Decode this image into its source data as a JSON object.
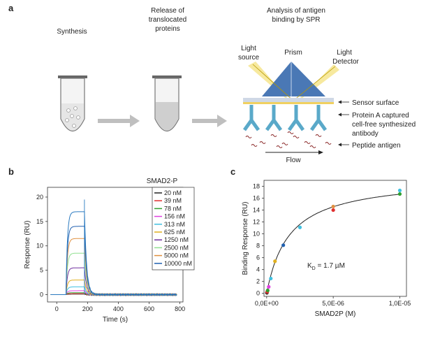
{
  "panel_a": {
    "letter": "a",
    "step1": "Synthesis",
    "step2_line1": "Release of",
    "step2_line2": "translocated",
    "step2_line3": "proteins",
    "step3_line1": "Analysis of antigen",
    "step3_line2": "binding by SPR",
    "prism": "Prism",
    "light_source_line1": "Light",
    "light_source_line2": "source",
    "light_detector_line1": "Light",
    "light_detector_line2": "Detector",
    "sensor_surface": "Sensor surface",
    "protein_a_line1": "Protein A captured",
    "protein_a_line2": "cell-free synthesized",
    "protein_a_line3": "antibody",
    "peptide_antigen": "Peptide antigen",
    "flow": "Flow",
    "colors": {
      "tube": "#f2f2f2",
      "arrow": "#bfbfbf",
      "prism": "#4a78b5",
      "beam": "#f6e58d",
      "antibody": "#5aa9c9",
      "peptide": "#8b2a2a",
      "sensor": "#d8d8d8"
    }
  },
  "chart_data": [
    {
      "type": "line",
      "panel": "b",
      "title": "SMAD2-P",
      "xlabel": "Time (s)",
      "ylabel": "Response (RU)",
      "xlim": [
        -60,
        820
      ],
      "ylim": [
        -1.5,
        22
      ],
      "xticks": [
        0,
        200,
        400,
        600,
        800
      ],
      "yticks": [
        0,
        5,
        10,
        15,
        20
      ],
      "legend_placement": "top-right",
      "injection_start": 60,
      "injection_end": 180,
      "series": [
        {
          "name": "20 nM",
          "plateau": 0.1,
          "color": "#222222"
        },
        {
          "name": "39 nM",
          "plateau": 0.2,
          "color": "#e03030"
        },
        {
          "name": "78 nM",
          "plateau": 0.4,
          "color": "#30a030"
        },
        {
          "name": "156 nM",
          "plateau": 0.8,
          "color": "#e040e0"
        },
        {
          "name": "313 nM",
          "plateau": 1.6,
          "color": "#40c0e0"
        },
        {
          "name": "625 nM",
          "plateau": 3.0,
          "color": "#e0b020"
        },
        {
          "name": "1250 nM",
          "plateau": 5.5,
          "color": "#7030a0"
        },
        {
          "name": "2500 nM",
          "plateau": 8.5,
          "color": "#90e090"
        },
        {
          "name": "5000 nM",
          "plateau": 11.5,
          "color": "#e09040"
        },
        {
          "name": "10000 nM",
          "plateau": 14.0,
          "color": "#2060b0"
        }
      ],
      "extra_series": [
        {
          "plateau": 17.0,
          "color": "#2a7ac0"
        }
      ]
    },
    {
      "type": "scatter",
      "panel": "c",
      "xlabel": "SMAD2P (M)",
      "ylabel": "Binding Response (RU)",
      "xlim": [
        -2e-07,
        1.05e-05
      ],
      "ylim": [
        -0.5,
        19
      ],
      "xticks": [
        0,
        5e-06,
        1e-05
      ],
      "xtick_labels": [
        "0,0E+00",
        "5,0E-06",
        "1,0E-05"
      ],
      "yticks": [
        0,
        2,
        4,
        6,
        8,
        10,
        12,
        14,
        16,
        18
      ],
      "annotation_k": "K",
      "annotation_sub": "D",
      "annotation_value": " = 1.7 µM",
      "fit": {
        "rmax": 19.5,
        "kd": 1.7e-06
      },
      "points": [
        {
          "x": 2e-08,
          "y": 0.1,
          "color": "#222222"
        },
        {
          "x": 3.9e-08,
          "y": 0.25,
          "color": "#e03030"
        },
        {
          "x": 7.8e-08,
          "y": 0.5,
          "color": "#30a030"
        },
        {
          "x": 1.56e-07,
          "y": 1.1,
          "color": "#e040e0"
        },
        {
          "x": 3.13e-07,
          "y": 2.5,
          "color": "#40c0e0"
        },
        {
          "x": 6.25e-07,
          "y": 5.4,
          "color": "#e0b020"
        },
        {
          "x": 1.25e-06,
          "y": 8.1,
          "color": "#2060b0"
        },
        {
          "x": 2.5e-06,
          "y": 11.1,
          "color": "#40c0e0"
        },
        {
          "x": 5e-06,
          "y": 14.0,
          "color": "#e03030"
        },
        {
          "x": 5e-06,
          "y": 14.6,
          "color": "#e09040"
        },
        {
          "x": 1e-05,
          "y": 16.7,
          "color": "#30a030"
        },
        {
          "x": 1e-05,
          "y": 17.3,
          "color": "#40c0e0"
        }
      ]
    }
  ]
}
